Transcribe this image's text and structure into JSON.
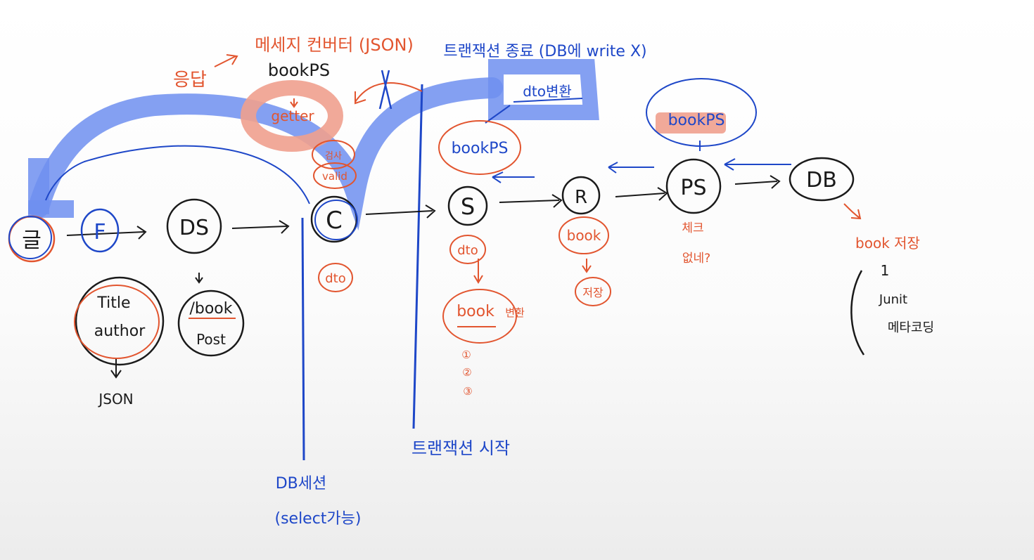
{
  "colors": {
    "ink_black": "#1a1a1a",
    "ink_red": "#e2552f",
    "ink_blue": "#1e47c8",
    "highlight_blue": "#6f8ff0",
    "highlight_red": "#f0a08e"
  },
  "nodes": {
    "client": "글",
    "filter": "F",
    "dispatcher": "DS",
    "controller": "C",
    "service": "S",
    "repository": "R",
    "persistence": "PS",
    "database": "DB"
  },
  "request_body": {
    "field1": "Title",
    "field2": "author",
    "format": "JSON"
  },
  "mapping": {
    "path": "/book",
    "method": "Post"
  },
  "controller_notes": {
    "dto": "dto",
    "validation1": "검사",
    "validation2": "valid"
  },
  "response": {
    "label": "응답",
    "converter": "메세지 컨버터 (JSON)",
    "object": "bookPS",
    "getter": "getter"
  },
  "transaction": {
    "end": "트랜잭션 종료 (DB에 write X)",
    "start": "트랜잭션 시작",
    "dto_convert": "dto변환",
    "bookps_to_dto": "bookPS"
  },
  "db_session": {
    "line1": "DB세션",
    "line2": "(select가능)"
  },
  "service_notes": {
    "dto": "dto",
    "book": "book",
    "convert": "변환",
    "steps": [
      "①",
      "②",
      "③"
    ]
  },
  "repository_notes": {
    "book": "book",
    "save": "저장"
  },
  "persistence_notes": {
    "bookps": "bookPS",
    "check1": "체크",
    "check2": "없네?"
  },
  "db_notes": {
    "save": "book 저장",
    "id": "1",
    "field1": "Junit",
    "field2": "메타코딩"
  }
}
